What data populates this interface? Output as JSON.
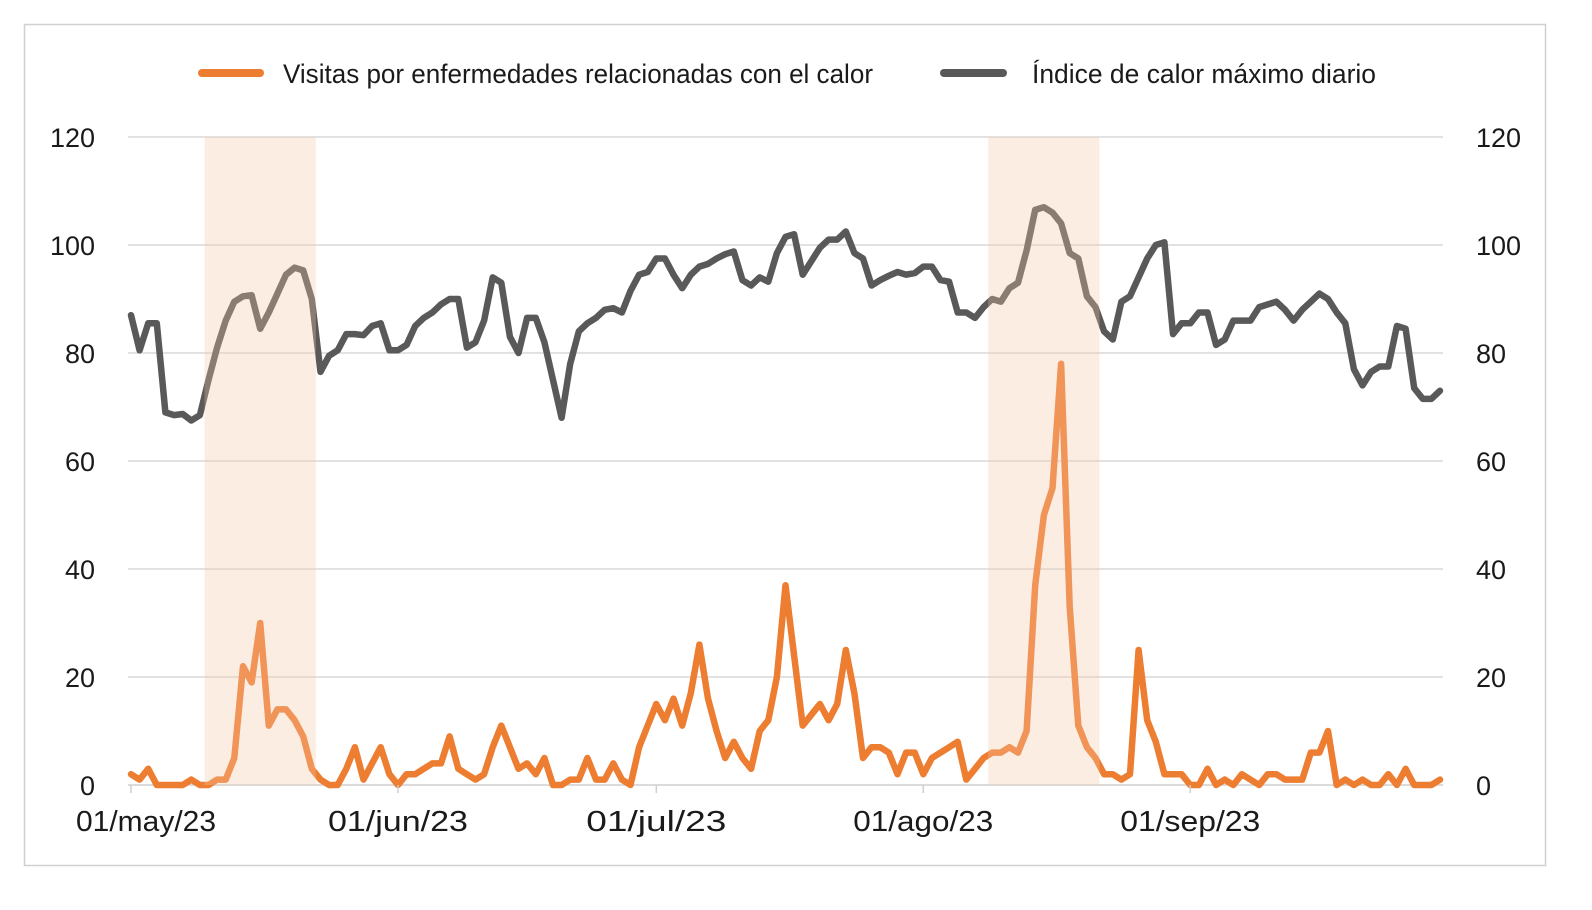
{
  "chart_data": {
    "type": "line",
    "title": "",
    "xlabel": "",
    "ylabel_left": "",
    "ylabel_right": "",
    "ylim_left": [
      0,
      120
    ],
    "ylim_right": [
      0,
      120
    ],
    "y_ticks": [
      0,
      20,
      40,
      60,
      80,
      100,
      120
    ],
    "x_range": [
      "2023-05-01",
      "2023-09-30"
    ],
    "x_ticks": [
      {
        "date": "2023-05-01",
        "label": "01/may/23"
      },
      {
        "date": "2023-06-01",
        "label": "01/jun/23"
      },
      {
        "date": "2023-07-01",
        "label": "01/jul/23"
      },
      {
        "date": "2023-08-01",
        "label": "01/ago/23"
      },
      {
        "date": "2023-09-01",
        "label": "01/sep/23"
      }
    ],
    "grid": "horizontal",
    "legend_position": "top",
    "highlight_bands": [
      {
        "start": "2023-05-10",
        "end": "2023-05-22",
        "color": "#F5C6A8"
      },
      {
        "start": "2023-08-09",
        "end": "2023-08-21",
        "color": "#F5C6A8"
      }
    ],
    "series": [
      {
        "name": "Visitas por enfermedades relacionadas con el calor",
        "color": "#ED7D31",
        "axis": "left",
        "values": [
          2,
          1,
          3,
          0,
          0,
          0,
          0,
          1,
          0,
          0,
          1,
          1,
          5,
          22,
          19,
          30,
          11,
          14,
          14,
          12,
          9,
          3,
          1,
          0,
          0,
          3,
          7,
          1,
          4,
          7,
          2,
          0,
          2,
          2,
          3,
          4,
          4,
          9,
          3,
          2,
          1,
          2,
          7,
          11,
          7,
          3,
          4,
          2,
          5,
          0,
          0,
          1,
          1,
          5,
          1,
          1,
          4,
          1,
          0,
          7,
          11,
          15,
          12,
          16,
          11,
          17,
          26,
          16,
          10,
          5,
          8,
          5,
          3,
          10,
          12,
          20,
          37,
          24,
          11,
          13,
          15,
          12,
          15,
          25,
          17,
          5,
          7,
          7,
          6,
          2,
          6,
          6,
          2,
          5,
          6,
          7,
          8,
          1,
          3,
          5,
          6,
          6,
          7,
          6,
          10,
          37,
          50,
          55,
          78,
          33,
          11,
          7,
          5,
          2,
          2,
          1,
          2,
          25,
          12,
          8,
          2,
          2,
          2,
          0,
          0,
          3,
          0,
          1,
          0,
          2,
          1,
          0,
          2,
          2,
          1,
          1,
          1,
          6,
          6,
          10,
          0,
          1,
          0,
          1,
          0,
          0,
          2,
          0,
          3,
          0,
          0,
          0,
          1
        ]
      },
      {
        "name": "Índice de calor máximo diario",
        "color": "#595959",
        "axis": "right",
        "values": [
          87,
          80.5,
          85.5,
          85.5,
          69,
          68.5,
          68.7,
          67.5,
          68.5,
          75,
          81,
          86,
          89.5,
          90.5,
          90.7,
          84.5,
          87.5,
          91,
          94.5,
          95.8,
          95.3,
          90,
          76.5,
          79.5,
          80.5,
          83.5,
          83.5,
          83.3,
          85,
          85.5,
          80.5,
          80.5,
          81.5,
          85,
          86.5,
          87.5,
          89,
          90,
          90,
          81,
          82,
          86,
          94,
          93,
          83,
          80,
          86.5,
          86.5,
          82,
          75,
          68,
          78,
          84,
          85.5,
          86.5,
          88,
          88.3,
          87.5,
          91.5,
          94.5,
          95,
          97.5,
          97.5,
          94.5,
          92,
          94.5,
          96,
          96.5,
          97.5,
          98.3,
          98.8,
          93.5,
          92.5,
          94,
          93.2,
          98.5,
          101.5,
          102,
          94.5,
          97,
          99.5,
          101,
          101,
          102.5,
          98.5,
          97.5,
          92.5,
          93.5,
          94.3,
          95,
          94.5,
          94.8,
          96,
          96,
          93.5,
          93.2,
          87.5,
          87.5,
          86.5,
          88.5,
          90,
          89.5,
          92,
          93,
          99,
          106.5,
          107,
          106,
          104,
          98.5,
          97.5,
          90.5,
          88.5,
          84,
          82.5,
          89.5,
          90.5,
          94,
          97.5,
          100,
          100.5,
          83.5,
          85.5,
          85.5,
          87.5,
          87.5,
          81.5,
          82.5,
          86,
          86,
          86,
          88.5,
          89,
          89.5,
          88,
          86,
          88,
          89.5,
          91,
          90,
          87.5,
          85.5,
          77,
          74,
          76.5,
          77.5,
          77.5,
          85,
          84.5,
          73.5,
          71.5,
          71.5,
          73
        ]
      }
    ]
  }
}
